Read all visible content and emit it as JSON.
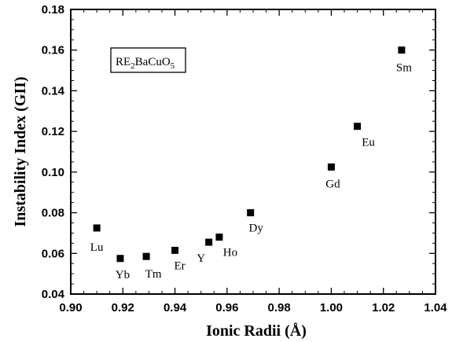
{
  "chart_data": {
    "type": "scatter",
    "xlabel": "Ionic Radii (Å)",
    "ylabel": "Instability Index (GII)",
    "xlim": [
      0.9,
      1.04
    ],
    "ylim": [
      0.04,
      0.18
    ],
    "xticks": [
      "0.90",
      "0.92",
      "0.94",
      "0.96",
      "0.98",
      "1.00",
      "1.02",
      "1.04"
    ],
    "yticks": [
      "0.04",
      "0.06",
      "0.08",
      "0.10",
      "0.12",
      "0.14",
      "0.16",
      "0.18"
    ],
    "legend": {
      "prefix": "RE",
      "sub1": "2",
      "middle": "BaCuO",
      "sub2": "5",
      "placement": "top-left"
    },
    "marker_color": "#000000",
    "points": [
      {
        "label": "Lu",
        "x": 0.91,
        "y": 0.0725
      },
      {
        "label": "Yb",
        "x": 0.919,
        "y": 0.0575
      },
      {
        "label": "Tm",
        "x": 0.929,
        "y": 0.0585
      },
      {
        "label": "Er",
        "x": 0.94,
        "y": 0.0615
      },
      {
        "label": "Y",
        "x": 0.953,
        "y": 0.0655
      },
      {
        "label": "Ho",
        "x": 0.957,
        "y": 0.068
      },
      {
        "label": "Dy",
        "x": 0.969,
        "y": 0.08
      },
      {
        "label": "Gd",
        "x": 1.0,
        "y": 0.1025
      },
      {
        "label": "Eu",
        "x": 1.01,
        "y": 0.1225
      },
      {
        "label": "Sm",
        "x": 1.027,
        "y": 0.16
      }
    ]
  }
}
